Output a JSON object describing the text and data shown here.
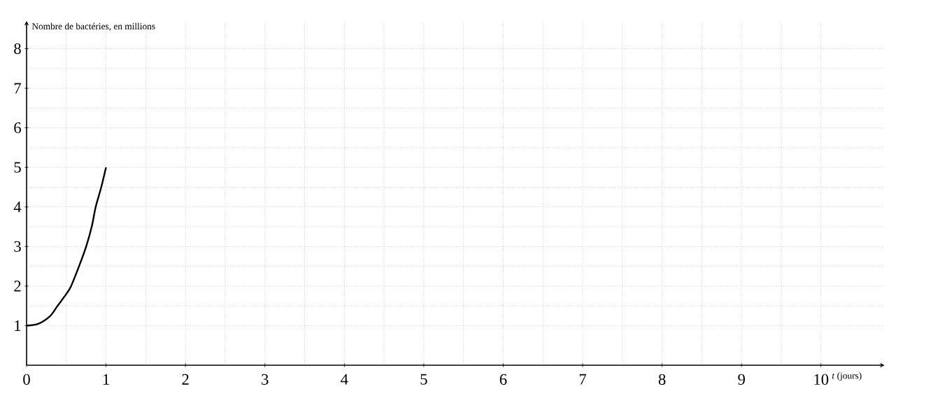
{
  "chart_data": {
    "type": "line",
    "xlabel": "*t* (jours)",
    "ylabel": "Nombre de bactéries, en millions",
    "x": [
      0,
      0.15,
      0.3,
      0.39,
      0.5,
      0.56,
      0.66,
      0.75,
      0.82,
      0.87,
      0.94,
      1
    ],
    "values": [
      1,
      1.05,
      1.25,
      1.5,
      1.8,
      2,
      2.5,
      3,
      3.5,
      4,
      4.5,
      5
    ],
    "color": "#000000",
    "xlim": [
      0,
      10.8
    ],
    "ylim": [
      0,
      8.7
    ],
    "xticks": [
      0,
      1,
      2,
      3,
      4,
      5,
      6,
      7,
      8,
      9,
      10
    ],
    "yticks": [
      1,
      2,
      3,
      4,
      5,
      6,
      7,
      8
    ],
    "grid": true
  }
}
